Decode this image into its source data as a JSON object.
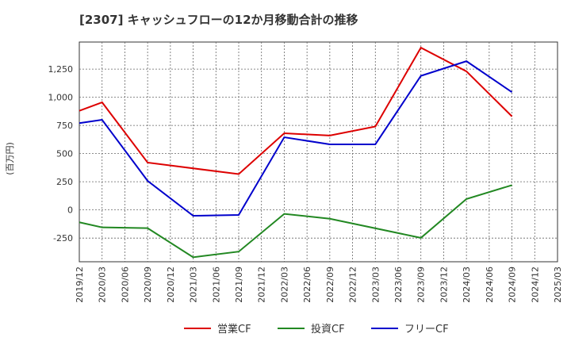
{
  "chart_data": {
    "type": "line",
    "title": "[2307]  キャッシュフローの12か月移動合計の推移",
    "ylabel": "(百万円)",
    "xlabel": "",
    "ylim": [
      -460,
      1490
    ],
    "yticks": [
      -250,
      0,
      250,
      500,
      750,
      1000,
      1250
    ],
    "ytick_labels": [
      "-250",
      "0",
      "250",
      "500",
      "750",
      "1,000",
      "1,250"
    ],
    "x_categories": [
      "2019/12",
      "2020/03",
      "2020/06",
      "2020/09",
      "2020/12",
      "2021/03",
      "2021/06",
      "2021/09",
      "2021/12",
      "2022/03",
      "2022/06",
      "2022/09",
      "2022/12",
      "2023/03",
      "2023/06",
      "2023/09",
      "2023/12",
      "2024/03",
      "2024/06",
      "2024/09",
      "2024/12",
      "2025/03"
    ],
    "grid": true,
    "legend_position": "bottom",
    "series": [
      {
        "name": "営業CF",
        "color": "#dd0000",
        "points": [
          [
            "2019/12",
            880
          ],
          [
            "2020/03",
            955
          ],
          [
            "2020/09",
            420
          ],
          [
            "2021/09",
            318
          ],
          [
            "2022/03",
            680
          ],
          [
            "2022/09",
            660
          ],
          [
            "2023/03",
            740
          ],
          [
            "2023/09",
            1440
          ],
          [
            "2024/03",
            1230
          ],
          [
            "2024/09",
            830
          ]
        ]
      },
      {
        "name": "投資CF",
        "color": "#228822",
        "points": [
          [
            "2019/12",
            -110
          ],
          [
            "2020/03",
            -155
          ],
          [
            "2020/09",
            -162
          ],
          [
            "2021/03",
            -420
          ],
          [
            "2021/09",
            -370
          ],
          [
            "2022/03",
            -35
          ],
          [
            "2022/09",
            -78
          ],
          [
            "2023/09",
            -248
          ],
          [
            "2024/03",
            97
          ],
          [
            "2024/09",
            220
          ]
        ]
      },
      {
        "name": "フリーCF",
        "color": "#0000cc",
        "points": [
          [
            "2019/12",
            770
          ],
          [
            "2020/03",
            800
          ],
          [
            "2020/09",
            258
          ],
          [
            "2021/03",
            -52
          ],
          [
            "2021/09",
            -45
          ],
          [
            "2022/03",
            645
          ],
          [
            "2022/09",
            582
          ],
          [
            "2023/03",
            582
          ],
          [
            "2023/09",
            1190
          ],
          [
            "2024/03",
            1320
          ],
          [
            "2024/09",
            1045
          ]
        ]
      }
    ]
  }
}
